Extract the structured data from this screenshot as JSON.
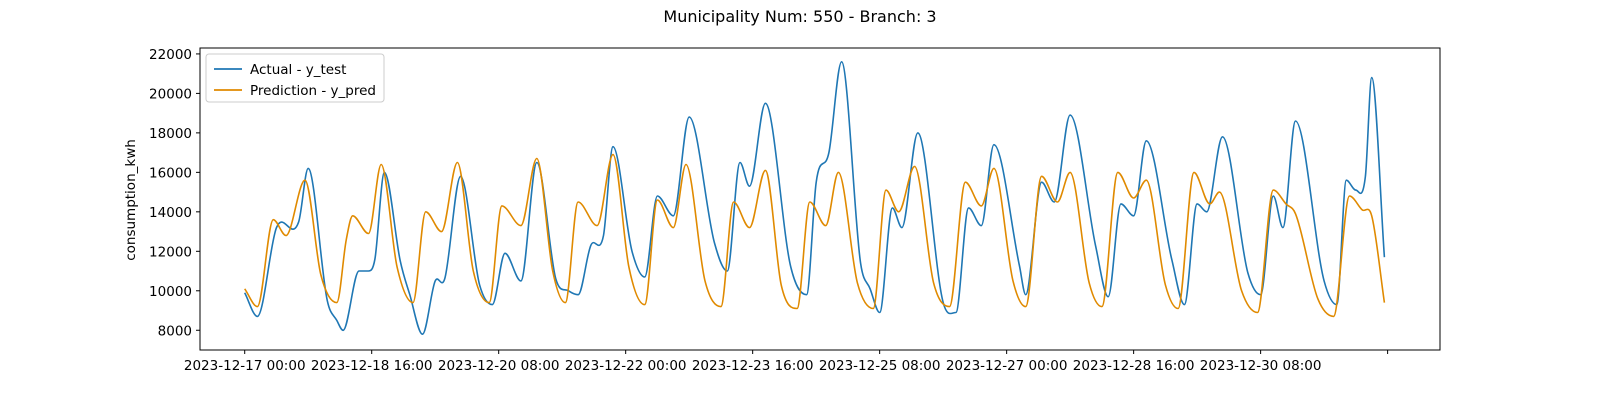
{
  "chart_data": {
    "type": "line",
    "title": "Municipality Num: 550 - Branch: 3",
    "xlabel": "",
    "ylabel": "consumption_kwh",
    "x_start": "2023-12-17 00:00",
    "x_end": "2023-12-31 23:00",
    "xlim": [
      "2023-12-16 09:55",
      "2024-01-01 16:30"
    ],
    "ylim": [
      7000,
      22300
    ],
    "yticks": [
      8000,
      10000,
      12000,
      14000,
      16000,
      18000,
      20000,
      22000
    ],
    "ytick_labels": [
      "8000",
      "10000",
      "12000",
      "14000",
      "16000",
      "18000",
      "20000",
      "22000"
    ],
    "xticks": [
      "2023-12-17 00:00",
      "2023-12-18 16:00",
      "2023-12-20 08:00",
      "2023-12-22 00:00",
      "2023-12-23 16:00",
      "2023-12-25 08:00",
      "2023-12-27 00:00",
      "2023-12-28 16:00",
      "2023-12-30 08:00",
      "2024-01-01 00:00"
    ],
    "xtick_labels": [
      "2023-12-17 00:00",
      "2023-12-18 16:00",
      "2023-12-20 08:00",
      "2023-12-22 00:00",
      "2023-12-23 16:00",
      "2023-12-25 08:00",
      "2023-12-27 00:00",
      "2023-12-28 16:00",
      "2023-12-30 08:00",
      ""
    ],
    "grid": false,
    "legend": "upper-left",
    "series": [
      {
        "name": "Actual - y_test",
        "color": "#1f77b4",
        "keypoints": [
          [
            "2023-12-17 00:00",
            9900
          ],
          [
            "2023-12-17 04:00",
            8700
          ],
          [
            "2023-12-17 10:00",
            13200
          ],
          [
            "2023-12-17 17:00",
            13500
          ],
          [
            "2023-12-17 20:00",
            16200
          ],
          [
            "2023-12-18 02:00",
            9500
          ],
          [
            "2023-12-18 05:00",
            8500
          ],
          [
            "2023-12-18 07:00",
            8000
          ],
          [
            "2023-12-18 12:00",
            11000
          ],
          [
            "2023-12-18 15:00",
            11000
          ],
          [
            "2023-12-18 17:00",
            11600
          ],
          [
            "2023-12-18 20:00",
            16000
          ],
          [
            "2023-12-19 01:00",
            11500
          ],
          [
            "2023-12-19 04:00",
            9800
          ],
          [
            "2023-12-19 08:00",
            7800
          ],
          [
            "2023-12-19 12:00",
            10500
          ],
          [
            "2023-12-19 15:00",
            10600
          ],
          [
            "2023-12-19 20:00",
            15800
          ],
          [
            "2023-12-20 02:00",
            10300
          ],
          [
            "2023-12-20 06:00",
            9300
          ],
          [
            "2023-12-20 10:00",
            11900
          ],
          [
            "2023-12-20 15:00",
            10500
          ],
          [
            "2023-12-20 20:00",
            16500
          ],
          [
            "2023-12-21 02:00",
            10600
          ],
          [
            "2023-12-21 06:00",
            10000
          ],
          [
            "2023-12-21 09:00",
            9800
          ],
          [
            "2023-12-21 13:00",
            12300
          ],
          [
            "2023-12-21 17:00",
            12800
          ],
          [
            "2023-12-21 20:00",
            17300
          ],
          [
            "2023-12-22 02:00",
            12000
          ],
          [
            "2023-12-22 06:00",
            10700
          ],
          [
            "2023-12-22 10:00",
            14800
          ],
          [
            "2023-12-22 15:00",
            13800
          ],
          [
            "2023-12-22 20:00",
            18800
          ],
          [
            "2023-12-23 04:00",
            12400
          ],
          [
            "2023-12-23 08:00",
            11000
          ],
          [
            "2023-12-23 12:00",
            16500
          ],
          [
            "2023-12-23 15:00",
            15300
          ],
          [
            "2023-12-23 20:00",
            19500
          ],
          [
            "2023-12-24 04:00",
            11200
          ],
          [
            "2023-12-24 09:00",
            9800
          ],
          [
            "2023-12-24 12:00",
            15500
          ],
          [
            "2023-12-24 16:00",
            17000
          ],
          [
            "2023-12-24 20:00",
            21600
          ],
          [
            "2023-12-25 02:00",
            11400
          ],
          [
            "2023-12-25 05:00",
            10100
          ],
          [
            "2023-12-25 08:00",
            8900
          ],
          [
            "2023-12-25 12:00",
            14200
          ],
          [
            "2023-12-25 15:00",
            13200
          ],
          [
            "2023-12-25 20:00",
            18000
          ],
          [
            "2023-12-26 04:00",
            9400
          ],
          [
            "2023-12-26 08:00",
            8900
          ],
          [
            "2023-12-26 12:00",
            14200
          ],
          [
            "2023-12-26 16:00",
            13300
          ],
          [
            "2023-12-26 20:00",
            17400
          ],
          [
            "2023-12-27 04:00",
            11300
          ],
          [
            "2023-12-27 06:00",
            9800
          ],
          [
            "2023-12-27 11:00",
            15500
          ],
          [
            "2023-12-27 15:00",
            14500
          ],
          [
            "2023-12-27 20:00",
            18900
          ],
          [
            "2023-12-28 04:00",
            12300
          ],
          [
            "2023-12-28 08:00",
            9700
          ],
          [
            "2023-12-28 12:00",
            14400
          ],
          [
            "2023-12-28 16:00",
            13800
          ],
          [
            "2023-12-28 20:00",
            17600
          ],
          [
            "2023-12-29 04:00",
            11600
          ],
          [
            "2023-12-29 08:00",
            9300
          ],
          [
            "2023-12-29 12:00",
            14400
          ],
          [
            "2023-12-29 15:00",
            14000
          ],
          [
            "2023-12-29 20:00",
            17800
          ],
          [
            "2023-12-30 04:00",
            10900
          ],
          [
            "2023-12-30 08:00",
            9800
          ],
          [
            "2023-12-30 12:00",
            14800
          ],
          [
            "2023-12-30 15:00",
            13200
          ],
          [
            "2023-12-30 19:00",
            18600
          ],
          [
            "2023-12-31 04:00",
            10500
          ],
          [
            "2023-12-31 08:00",
            9300
          ],
          [
            "2023-12-31 11:00",
            15600
          ],
          [
            "2023-12-31 14:00",
            15100
          ],
          [
            "2023-12-31 17:00",
            15800
          ],
          [
            "2023-12-31 19:00",
            20800
          ],
          [
            "2023-12-31 23:00",
            11700
          ]
        ]
      },
      {
        "name": "Prediction - y_pred",
        "color": "#e08a00",
        "keypoints": [
          [
            "2023-12-17 00:00",
            10100
          ],
          [
            "2023-12-17 04:00",
            9200
          ],
          [
            "2023-12-17 09:00",
            13600
          ],
          [
            "2023-12-17 13:00",
            12800
          ],
          [
            "2023-12-17 19:00",
            15600
          ],
          [
            "2023-12-18 00:00",
            10800
          ],
          [
            "2023-12-18 05:00",
            9400
          ],
          [
            "2023-12-18 08:00",
            12600
          ],
          [
            "2023-12-18 10:00",
            13800
          ],
          [
            "2023-12-18 15:00",
            12900
          ],
          [
            "2023-12-18 19:00",
            16400
          ],
          [
            "2023-12-19 00:00",
            11200
          ],
          [
            "2023-12-19 05:00",
            9400
          ],
          [
            "2023-12-19 09:00",
            14000
          ],
          [
            "2023-12-19 14:00",
            13000
          ],
          [
            "2023-12-19 19:00",
            16500
          ],
          [
            "2023-12-20 00:00",
            11000
          ],
          [
            "2023-12-20 05:00",
            9400
          ],
          [
            "2023-12-20 09:00",
            14300
          ],
          [
            "2023-12-20 15:00",
            13300
          ],
          [
            "2023-12-20 20:00",
            16700
          ],
          [
            "2023-12-21 01:00",
            11000
          ],
          [
            "2023-12-21 05:00",
            9400
          ],
          [
            "2023-12-21 09:00",
            14500
          ],
          [
            "2023-12-21 15:00",
            13300
          ],
          [
            "2023-12-21 20:00",
            16900
          ],
          [
            "2023-12-22 01:00",
            11200
          ],
          [
            "2023-12-22 06:00",
            9300
          ],
          [
            "2023-12-22 10:00",
            14600
          ],
          [
            "2023-12-22 15:00",
            13200
          ],
          [
            "2023-12-22 19:00",
            16400
          ],
          [
            "2023-12-23 01:00",
            10500
          ],
          [
            "2023-12-23 06:00",
            9200
          ],
          [
            "2023-12-23 10:00",
            14500
          ],
          [
            "2023-12-23 15:00",
            13200
          ],
          [
            "2023-12-23 20:00",
            16100
          ],
          [
            "2023-12-24 01:00",
            10300
          ],
          [
            "2023-12-24 06:00",
            9100
          ],
          [
            "2023-12-24 10:00",
            14500
          ],
          [
            "2023-12-24 15:00",
            13300
          ],
          [
            "2023-12-24 19:00",
            16000
          ],
          [
            "2023-12-25 01:00",
            10400
          ],
          [
            "2023-12-25 06:00",
            9100
          ],
          [
            "2023-12-25 10:00",
            15100
          ],
          [
            "2023-12-25 14:00",
            14000
          ],
          [
            "2023-12-25 19:00",
            16300
          ],
          [
            "2023-12-26 01:00",
            10400
          ],
          [
            "2023-12-26 06:00",
            9200
          ],
          [
            "2023-12-26 11:00",
            15500
          ],
          [
            "2023-12-26 16:00",
            14300
          ],
          [
            "2023-12-26 20:00",
            16200
          ],
          [
            "2023-12-27 02:00",
            10500
          ],
          [
            "2023-12-27 06:00",
            9200
          ],
          [
            "2023-12-27 11:00",
            15800
          ],
          [
            "2023-12-27 16:00",
            14500
          ],
          [
            "2023-12-27 20:00",
            16000
          ],
          [
            "2023-12-28 02:00",
            10400
          ],
          [
            "2023-12-28 06:00",
            9200
          ],
          [
            "2023-12-28 11:00",
            16000
          ],
          [
            "2023-12-28 16:00",
            14700
          ],
          [
            "2023-12-28 20:00",
            15600
          ],
          [
            "2023-12-29 02:00",
            10300
          ],
          [
            "2023-12-29 06:00",
            9100
          ],
          [
            "2023-12-29 11:00",
            16000
          ],
          [
            "2023-12-29 16:00",
            14400
          ],
          [
            "2023-12-29 19:00",
            15000
          ],
          [
            "2023-12-30 02:00",
            10000
          ],
          [
            "2023-12-30 07:00",
            8900
          ],
          [
            "2023-12-30 12:00",
            15100
          ],
          [
            "2023-12-30 16:00",
            14400
          ],
          [
            "2023-12-30 19:00",
            13900
          ],
          [
            "2023-12-31 02:00",
            9600
          ],
          [
            "2023-12-31 07:00",
            8700
          ],
          [
            "2023-12-31 12:00",
            14800
          ],
          [
            "2023-12-31 16:00",
            14100
          ],
          [
            "2023-12-31 19:00",
            13800
          ],
          [
            "2023-12-31 23:00",
            9400
          ]
        ]
      }
    ]
  }
}
